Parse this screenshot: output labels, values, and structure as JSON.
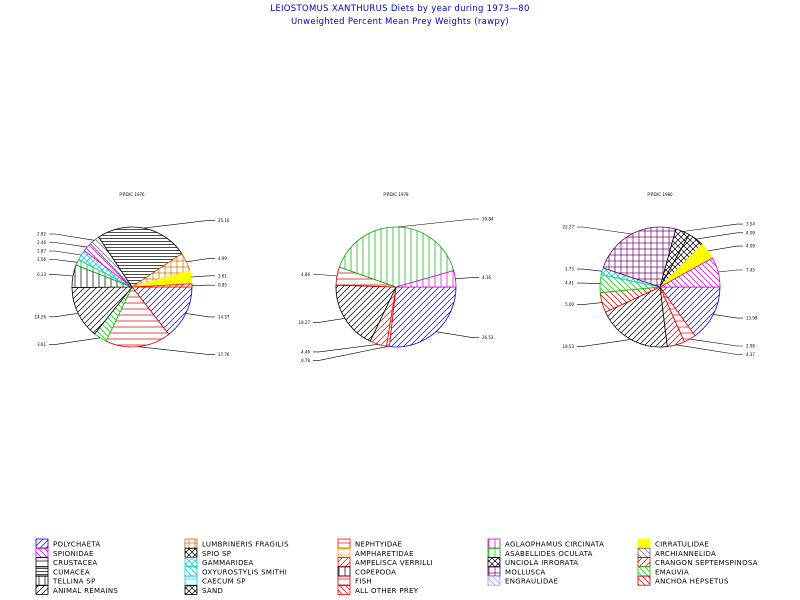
{
  "title": "LEIOSTOMUS XANTHURUS Diets by year during 1973—80",
  "subtitle": "Unweighted Percent Mean Prey Weights (rawpy)",
  "chart_data": {
    "type": "pie",
    "categories": [
      {
        "name": "POLYCHAETA",
        "color": "#0000ff",
        "pattern": "fdiag"
      },
      {
        "name": "SPIONIDAE",
        "color": "#cc00cc",
        "pattern": "bdiag"
      },
      {
        "name": "CRUSTACEA",
        "color": "#000000",
        "pattern": "horiz"
      },
      {
        "name": "CUMACEA",
        "color": "#000000",
        "pattern": "horiz2"
      },
      {
        "name": "TELLINA SP",
        "color": "#000000",
        "pattern": "vert"
      },
      {
        "name": "ANIMAL REMAINS",
        "color": "#000000",
        "pattern": "fdiag"
      },
      {
        "name": "LUMBRINERIS FRAGILIS",
        "color": "#cc6600",
        "pattern": "cross"
      },
      {
        "name": "SPIO SP",
        "color": "#000000",
        "pattern": "diagcross"
      },
      {
        "name": "GAMMARIDEA",
        "color": "#00cccc",
        "pattern": "diagcross"
      },
      {
        "name": "OXYUROSTYLIS SMITHI",
        "color": "#00cccc",
        "pattern": "bdiag"
      },
      {
        "name": "CAECUM SP",
        "color": "#00cccc",
        "pattern": "horiz"
      },
      {
        "name": "SAND",
        "color": "#000000",
        "pattern": "diagcross"
      },
      {
        "name": "NEPHTYIDAE",
        "color": "#ff0000",
        "pattern": "horiz"
      },
      {
        "name": "AMPHARETIDAE",
        "color": "#ff9900",
        "pattern": "horiz"
      },
      {
        "name": "AMPELISCA VERRILLI",
        "color": "#ff0000",
        "pattern": "fdiag"
      },
      {
        "name": "COPEPODA",
        "color": "#000000",
        "pattern": "vert"
      },
      {
        "name": "FISH",
        "color": "#cc0000",
        "pattern": "horiz"
      },
      {
        "name": "ALL OTHER PREY",
        "color": "#ff0000",
        "pattern": "bdiag"
      },
      {
        "name": "AGLAOPHAMUS CIRCINATA",
        "color": "#cc00cc",
        "pattern": "vert"
      },
      {
        "name": "ASABELLIDES OCULATA",
        "color": "#00aa00",
        "pattern": "vert"
      },
      {
        "name": "UNCIOLA IRRORATA",
        "color": "#000000",
        "pattern": "diagcross"
      },
      {
        "name": "MOLLUSCA",
        "color": "#660066",
        "pattern": "grid"
      },
      {
        "name": "ENGRAULIDAE",
        "color": "#9999ff",
        "pattern": "bdiag"
      },
      {
        "name": "CIRRATULIDAE",
        "color": "#ffff00",
        "pattern": "solid"
      },
      {
        "name": "ARCHIANNELIDA",
        "color": "#666666",
        "pattern": "bdiag"
      },
      {
        "name": "CRANGON SEPTEMSPINOSA",
        "color": "#cc0000",
        "pattern": "fdiag"
      },
      {
        "name": "EMAUVIA",
        "color": "#00cc00",
        "pattern": "bdiag"
      },
      {
        "name": "ANCHOA HEPSETUS",
        "color": "#cc0000",
        "pattern": "bdiag"
      }
    ],
    "pies": [
      {
        "title": "P'RD(C 1976",
        "slices": [
          {
            "category": "POLYCHAETA",
            "value": 14.57,
            "label": "14.57"
          },
          {
            "category": "FISH",
            "value": 17.76,
            "label": "17.76"
          },
          {
            "category": "EMAUVIA",
            "value": 3.61,
            "label": "3.61"
          },
          {
            "category": "ANIMAL REMAINS",
            "value": 14.26,
            "label": "14.26"
          },
          {
            "category": "TELLINA SP",
            "value": 6.13,
            "label": "6.13"
          },
          {
            "category": "ASABELLIDES OCULATA",
            "value": 1.56,
            "label": "1.56"
          },
          {
            "category": "GAMMARIDEA",
            "value": 2.87,
            "label": "2.87"
          },
          {
            "category": "SPIONIDAE",
            "value": 2.46,
            "label": "2.46"
          },
          {
            "category": "ARCHIANNELIDA",
            "value": 2.82,
            "label": "2.82"
          },
          {
            "category": "CUMACEA",
            "value": 25.16,
            "label": "25.16"
          },
          {
            "category": "LUMBRINERIS FRAGILIS",
            "value": 4.99,
            "label": "4.99"
          },
          {
            "category": "CIRRATULIDAE",
            "value": 3.61,
            "label": "3.61"
          },
          {
            "category": "AMPELISCA VERRILLI",
            "value": 0.85,
            "label": "0.85"
          }
        ]
      },
      {
        "title": "P'RD(C 1978",
        "slices": [
          {
            "category": "POLYCHAETA",
            "value": 26.53,
            "label": "26.53"
          },
          {
            "category": "NEPHTYIDAE",
            "value": 0.78,
            "label": "0.78"
          },
          {
            "category": "AMPELISCA VERRILLI",
            "value": 4.46,
            "label": "4.46"
          },
          {
            "category": "ANIMAL REMAINS",
            "value": 18.27,
            "label": "18.27"
          },
          {
            "category": "FISH",
            "value": 4.86,
            "label": "4.86"
          },
          {
            "category": "ASABELLIDES OCULATA",
            "value": 39.84,
            "label": "39.84"
          },
          {
            "category": "AGLAOPHAMUS CIRCINATA",
            "value": 4.36,
            "label": "4.36"
          }
        ]
      },
      {
        "title": "P'RD(C 1980",
        "slices": [
          {
            "category": "POLYCHAETA",
            "value": 13.98,
            "label": "13.98"
          },
          {
            "category": "NEPHTYIDAE",
            "value": 2.98,
            "label": "2.98"
          },
          {
            "category": "CRANGON SEPTEMSPINOSA",
            "value": 4.37,
            "label": "4.37"
          },
          {
            "category": "ANIMAL REMAINS",
            "value": 18.53,
            "label": "18.53"
          },
          {
            "category": "ANCHOA HEPSETUS",
            "value": 5.0,
            "label": "5.00"
          },
          {
            "category": "EMAUVIA",
            "value": 4.41,
            "label": "4.41"
          },
          {
            "category": "GAMMARIDEA",
            "value": 1.73,
            "label": "1.73"
          },
          {
            "category": "MOLLUSCA",
            "value": 22.27,
            "label": "22.27"
          },
          {
            "category": "UNCIOLA IRRORATA",
            "value": 3.54,
            "label": "3.54"
          },
          {
            "category": "SPIO SP",
            "value": 4.09,
            "label": "4.09"
          },
          {
            "category": "CIRRATULIDAE",
            "value": 4.09,
            "label": "4.09"
          },
          {
            "category": "SPIONIDAE",
            "value": 7.45,
            "label": "7.45"
          }
        ]
      }
    ]
  }
}
